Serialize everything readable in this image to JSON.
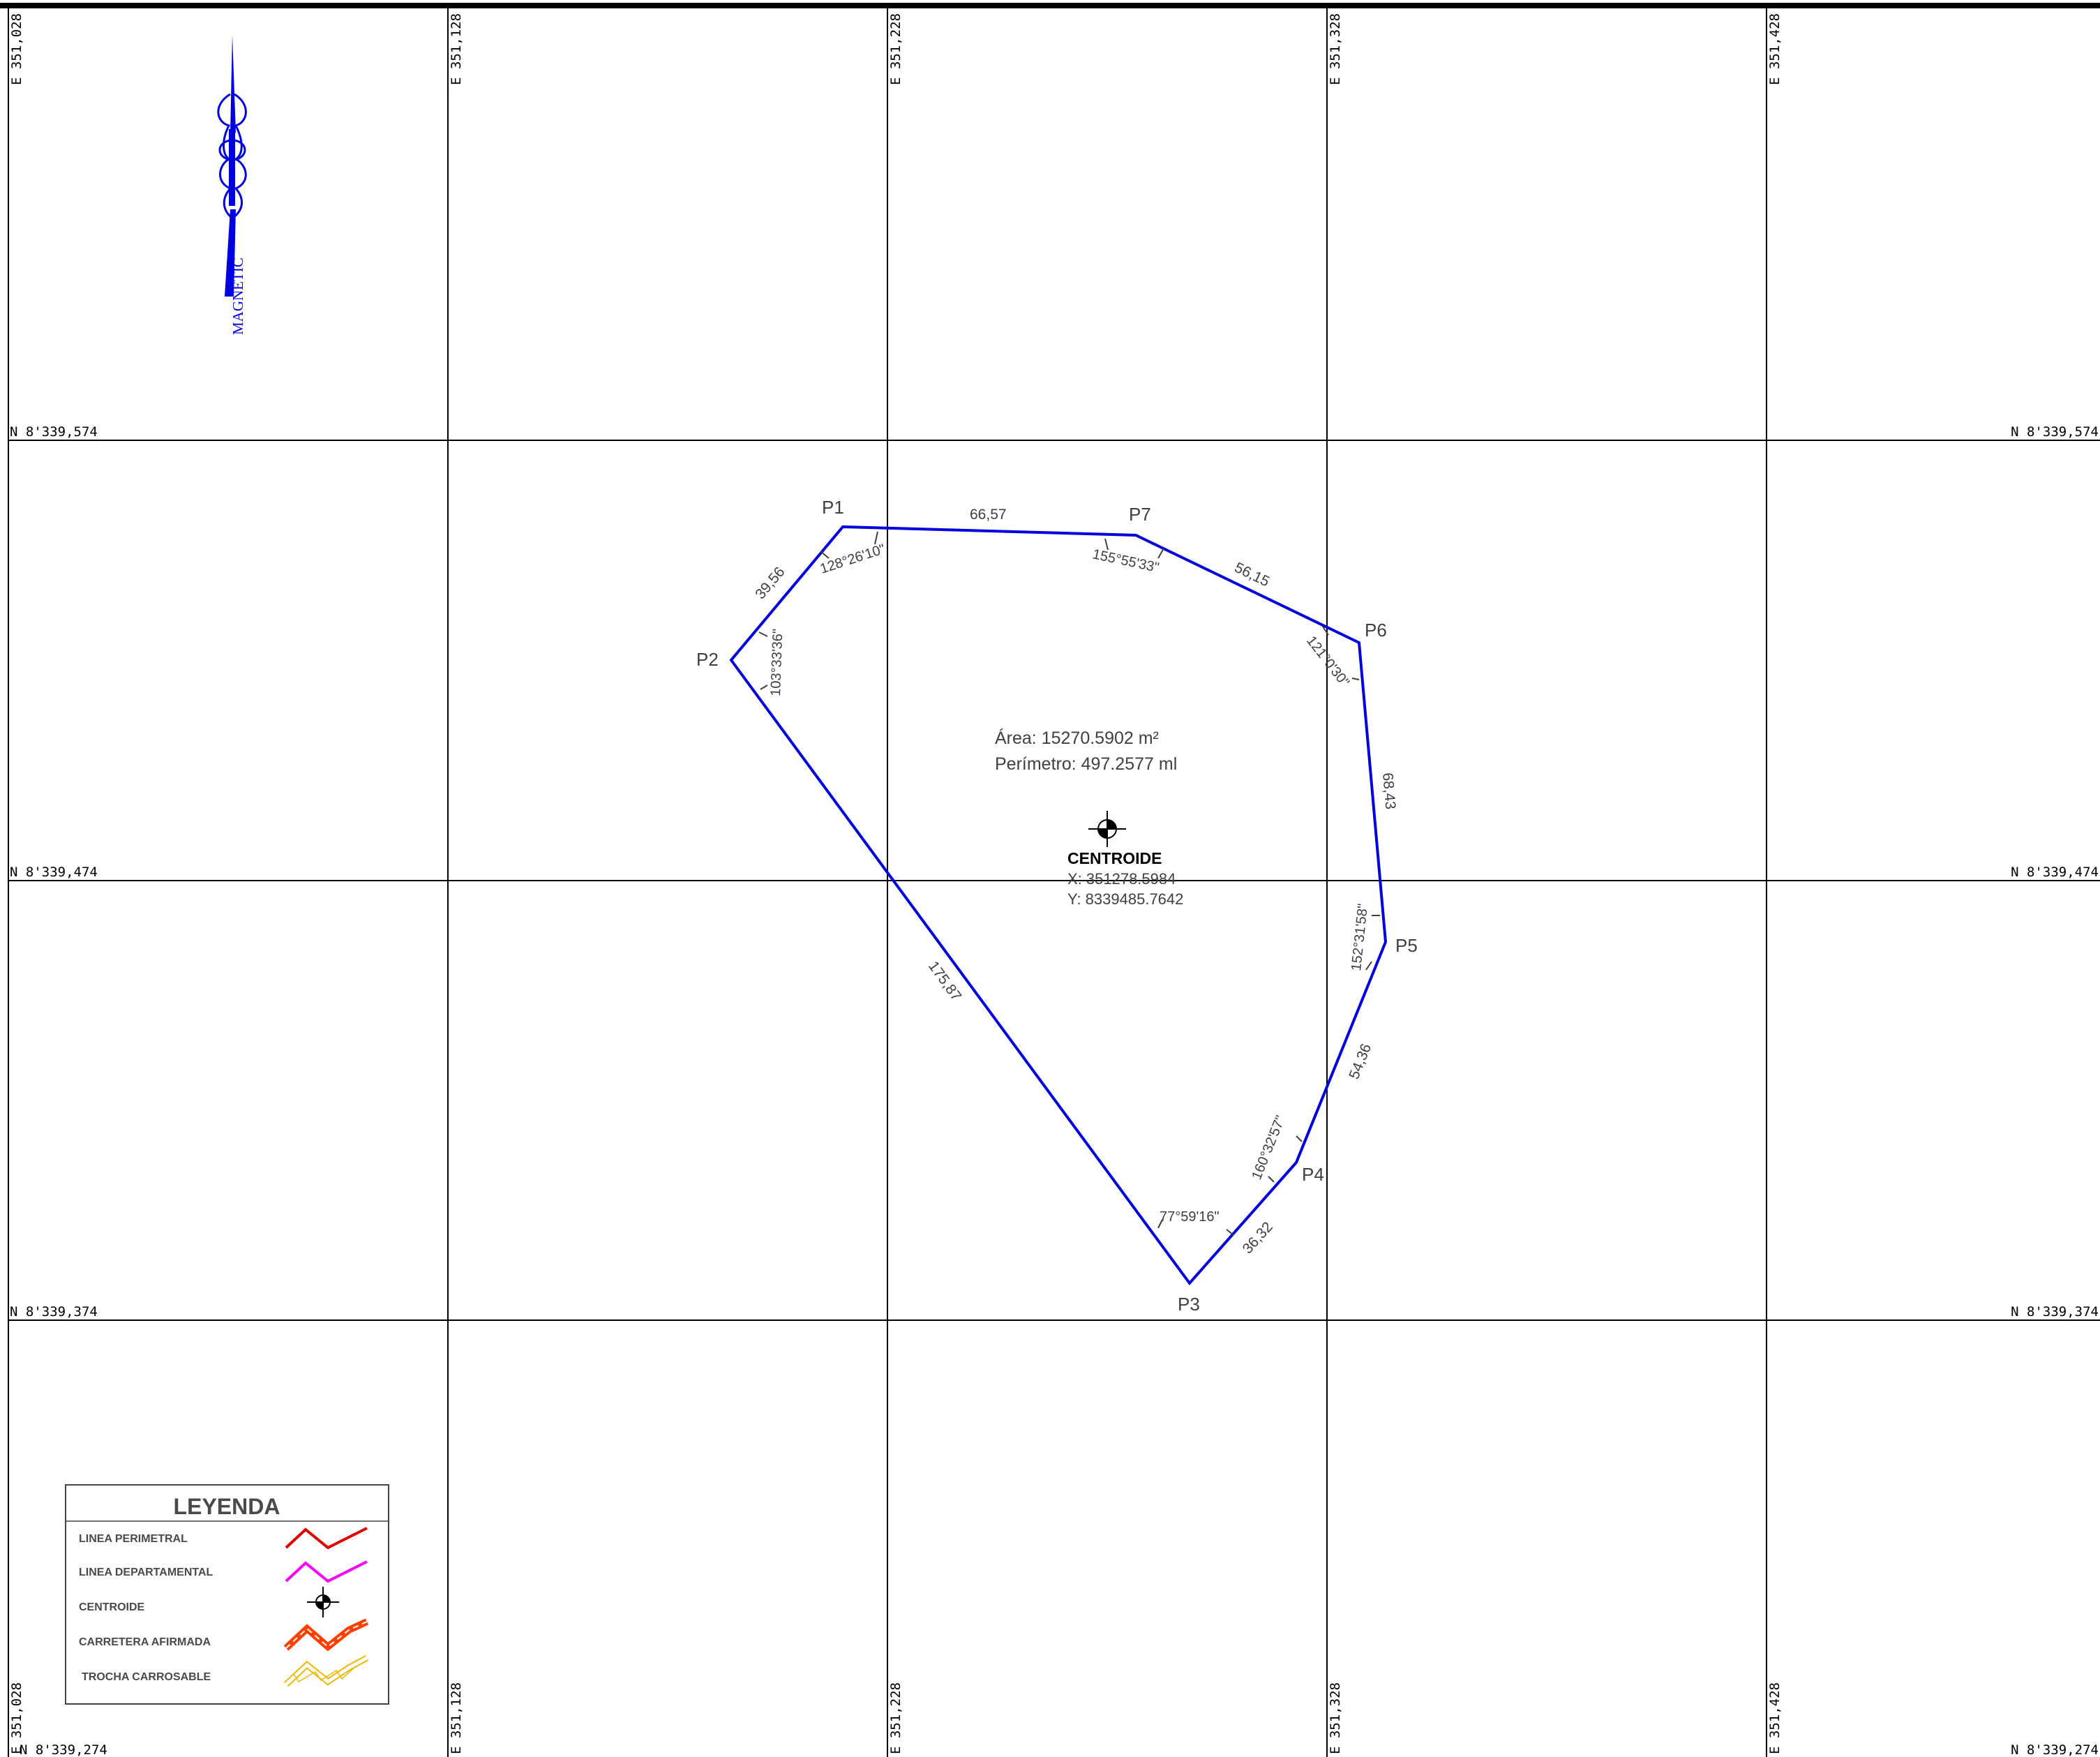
{
  "grid": {
    "easting_labels": [
      "E 351,028",
      "E 351,128",
      "E 351,228",
      "E 351,328",
      "E 351,428"
    ],
    "northing_labels": [
      "N 8'339,574",
      "N 8'339,474",
      "N 8'339,374",
      "N 8'339,274"
    ]
  },
  "north_arrow": {
    "label": "MAGNETIC",
    "icon": "north-arrow-icon"
  },
  "parcel": {
    "color": "#0000e0",
    "vertices": [
      {
        "name": "P1",
        "label": "P1"
      },
      {
        "name": "P7",
        "label": "P7"
      },
      {
        "name": "P6",
        "label": "P6"
      },
      {
        "name": "P5",
        "label": "P5"
      },
      {
        "name": "P4",
        "label": "P4"
      },
      {
        "name": "P3",
        "label": "P3"
      },
      {
        "name": "P2",
        "label": "P2"
      }
    ],
    "sides": [
      {
        "from": "P1",
        "to": "P7",
        "length": "66,57"
      },
      {
        "from": "P7",
        "to": "P6",
        "length": "56,15"
      },
      {
        "from": "P6",
        "to": "P5",
        "length": "68,43"
      },
      {
        "from": "P5",
        "to": "P4",
        "length": "54,36"
      },
      {
        "from": "P4",
        "to": "P3",
        "length": "36,32"
      },
      {
        "from": "P3",
        "to": "P2",
        "length": "175,87"
      },
      {
        "from": "P2",
        "to": "P1",
        "length": "39,56"
      }
    ],
    "angles": [
      {
        "vertex": "P1",
        "value": "128°26'10\""
      },
      {
        "vertex": "P7",
        "value": "155°55'33\""
      },
      {
        "vertex": "P6",
        "value": "121°0'30\""
      },
      {
        "vertex": "P5",
        "value": "152°31'58\""
      },
      {
        "vertex": "P4",
        "value": "160°32'57\""
      },
      {
        "vertex": "P3",
        "value": "77°59'16\""
      },
      {
        "vertex": "P2",
        "value": "103°33'36\""
      }
    ],
    "area_label": "Área:  15270.5902 m²",
    "perimeter_label": "Perímetro:  497.2577 ml"
  },
  "centroid": {
    "title": "CENTROIDE",
    "x_label": "X: 351278.5984",
    "y_label": "Y: 8339485.7642",
    "icon": "centroid-icon"
  },
  "legend": {
    "title": "LEYENDA",
    "items": [
      {
        "label": "LINEA PERIMETRAL",
        "icon": "zigzag-line-icon",
        "color": "#e00000"
      },
      {
        "label": "LINEA DEPARTAMENTAL",
        "icon": "zigzag-line-icon",
        "color": "#ff00ff"
      },
      {
        "label": "CENTROIDE",
        "icon": "centroid-icon",
        "color": "#000000"
      },
      {
        "label": "CARRETERA AFIRMADA",
        "icon": "road-icon",
        "color": "#ff4000"
      },
      {
        "label": "TROCHA CARROSABLE",
        "icon": "track-icon",
        "color": "#f0b800"
      }
    ]
  }
}
